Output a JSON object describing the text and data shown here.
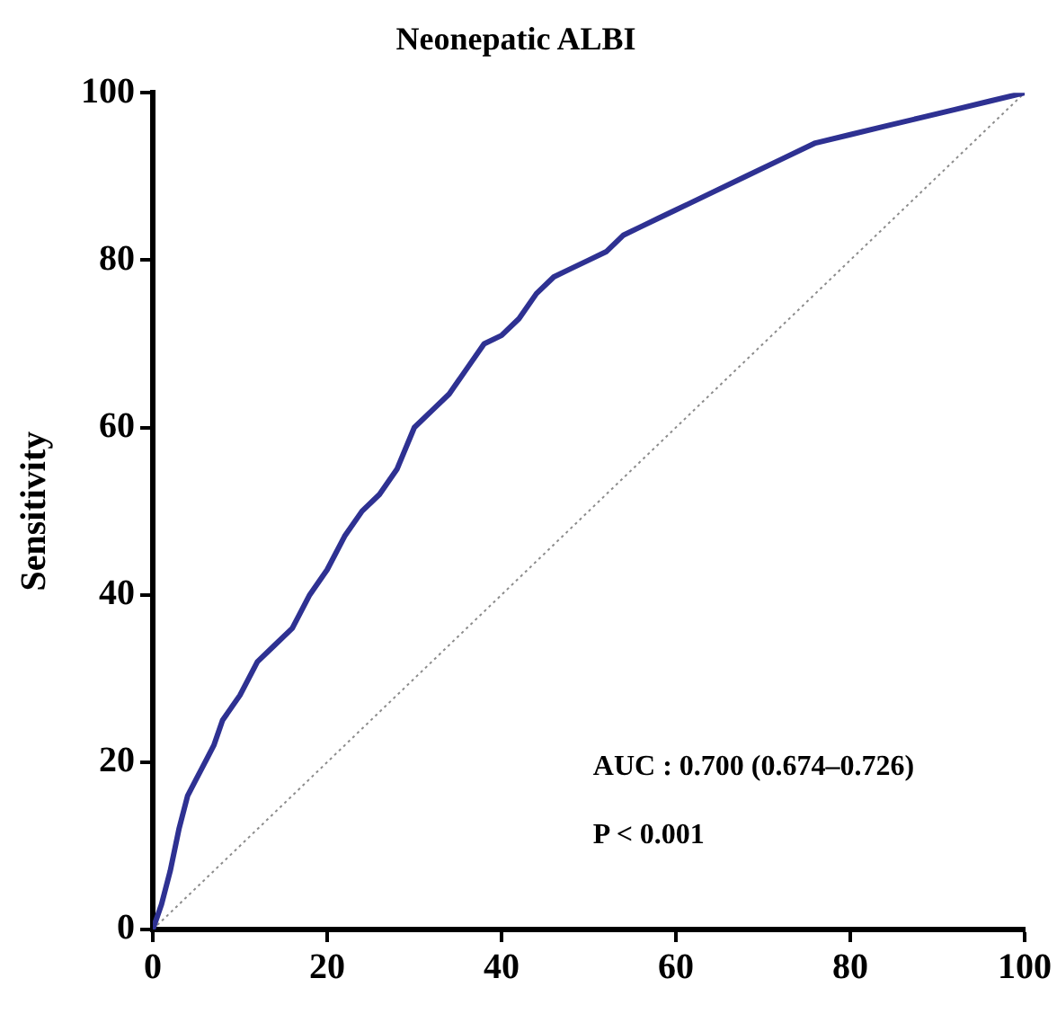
{
  "chart_data": {
    "type": "line",
    "title": "Neonepatic ALBI",
    "ylabel": "Sensitivity",
    "xlim": [
      0,
      100
    ],
    "ylim": [
      0,
      100
    ],
    "xticks": [
      0,
      20,
      40,
      60,
      80,
      100
    ],
    "yticks": [
      0,
      20,
      40,
      60,
      80,
      100
    ],
    "grid": false,
    "legend": false,
    "marker": "none",
    "series": [
      {
        "color": "#2e3192",
        "line_style": "solid",
        "x": [
          0,
          1,
          2,
          3,
          4,
          5,
          6,
          7,
          8,
          10,
          12,
          14,
          16,
          18,
          20,
          22,
          24,
          26,
          28,
          30,
          32,
          34,
          36,
          38,
          40,
          42,
          44,
          46,
          48,
          50,
          52,
          54,
          56,
          58,
          60,
          64,
          68,
          72,
          76,
          80,
          84,
          88,
          92,
          96,
          100
        ],
        "values": [
          0,
          3,
          7,
          12,
          16,
          18,
          20,
          22,
          25,
          28,
          32,
          34,
          36,
          40,
          43,
          47,
          50,
          52,
          55,
          60,
          62,
          64,
          67,
          70,
          71,
          73,
          76,
          78,
          79,
          80,
          81,
          83,
          84,
          85,
          86,
          88,
          90,
          92,
          94,
          95,
          96,
          97,
          98,
          99,
          100
        ]
      },
      {
        "color": "#8c8c8c",
        "line_style": "dotted",
        "x": [
          0,
          100
        ],
        "values": [
          0,
          100
        ]
      }
    ],
    "annotations": [
      "AUC : 0.700 (0.674–0.726)",
      "P < 0.001"
    ]
  }
}
